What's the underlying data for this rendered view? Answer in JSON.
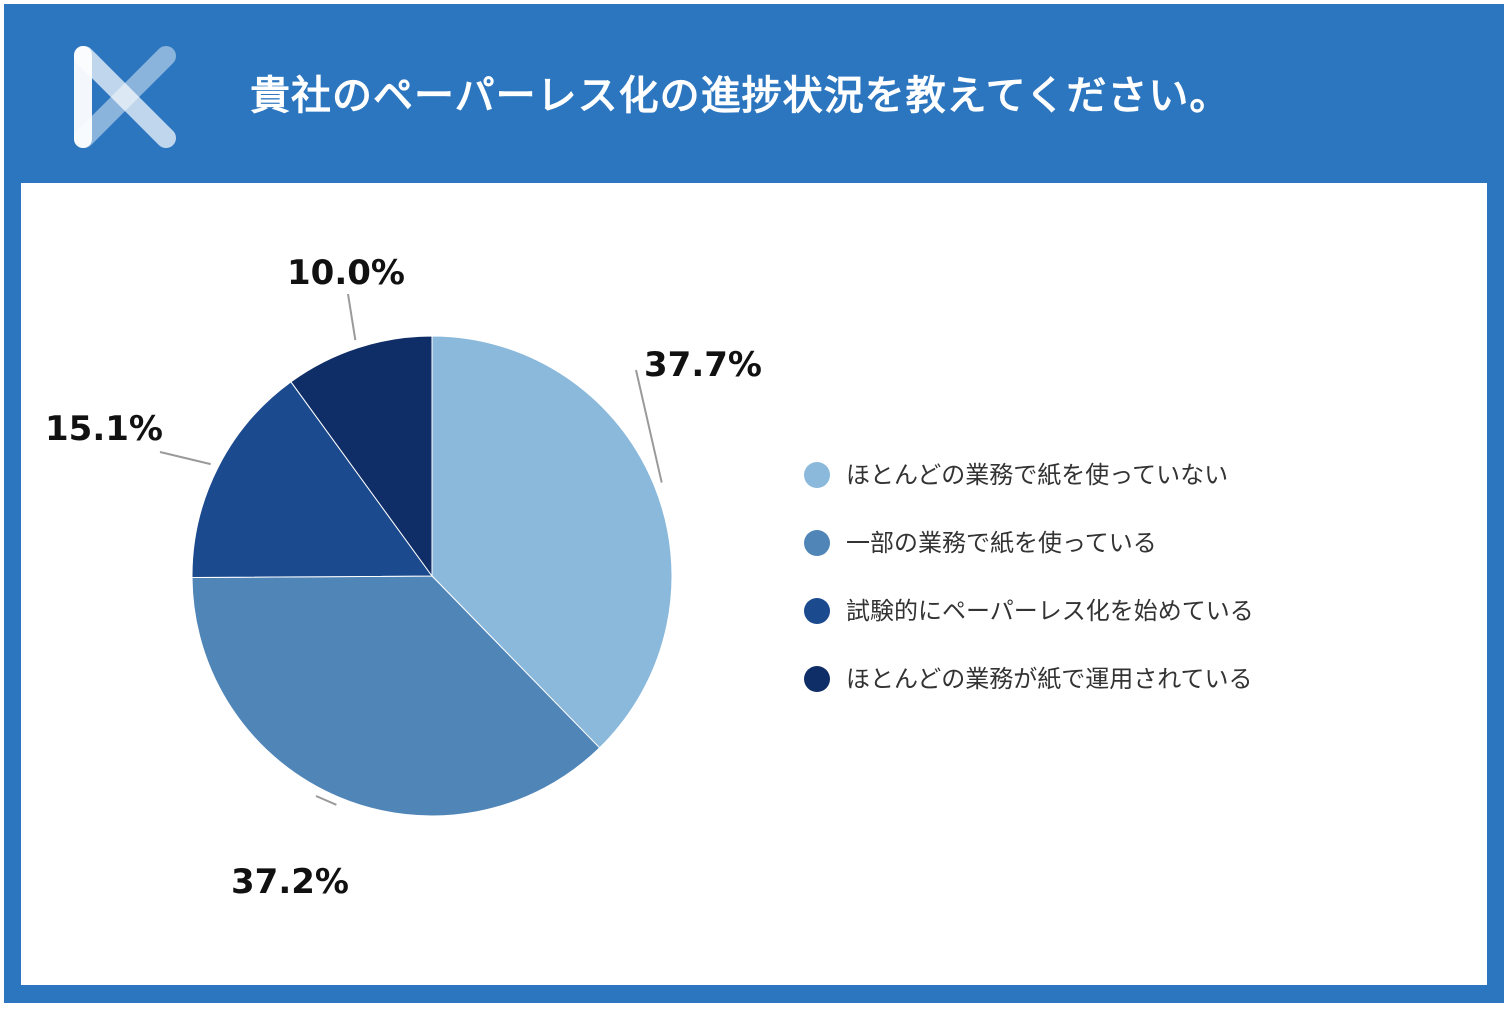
{
  "header": {
    "title": "貴社のペーパーレス化の進捗状況を教えてください。"
  },
  "colors": {
    "frame": "#2c76c0",
    "panel": "#ffffff",
    "leader_line": "#9a9a9a"
  },
  "chart_data": {
    "type": "pie",
    "title": "貴社のペーパーレス化の進捗状況を教えてください。",
    "start_angle": "12 o'clock, clockwise",
    "slices": [
      {
        "label": "ほとんどの業務で紙を使っていない",
        "value": 37.7,
        "display": "37.7%",
        "color": "#8ab9db"
      },
      {
        "label": "一部の業務で紙を使っている",
        "value": 37.2,
        "display": "37.2%",
        "color": "#5085b8"
      },
      {
        "label": "試験的にペーパーレス化を始めている",
        "value": 15.1,
        "display": "15.1%",
        "color": "#1c4a8e"
      },
      {
        "label": "ほとんどの業務が紙で運用されている",
        "value": 10.0,
        "display": "10.0%",
        "color": "#0f2d66"
      }
    ],
    "legend_position": "right"
  }
}
